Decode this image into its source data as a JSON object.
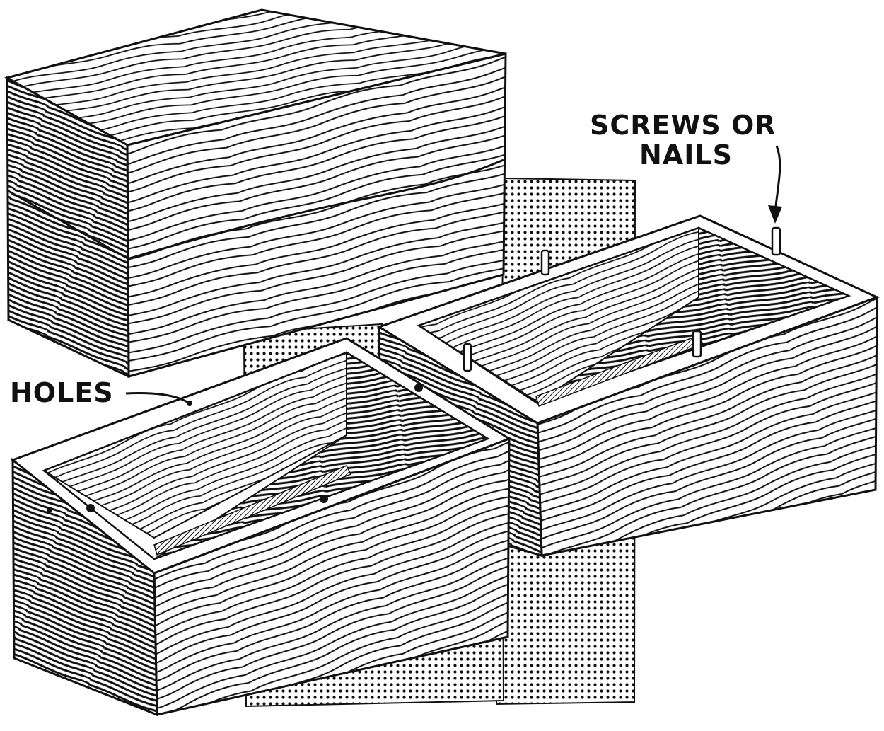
{
  "labels": {
    "holes": "HOLES",
    "screws_line1": "SCREWS OR",
    "screws_line2": "NAILS"
  },
  "colors": {
    "ink": "#111111",
    "paper": "#ffffff"
  }
}
